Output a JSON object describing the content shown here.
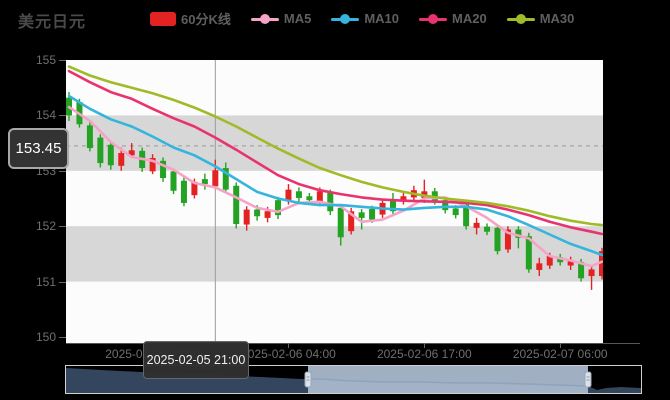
{
  "title": "美元日元",
  "legend": {
    "kline": {
      "label": "60分K线",
      "color": "#e32222"
    },
    "mas": [
      {
        "label": "MA5",
        "color": "#f5a3c7"
      },
      {
        "label": "MA10",
        "color": "#35b5dc"
      },
      {
        "label": "MA20",
        "color": "#e8336e"
      },
      {
        "label": "MA30",
        "color": "#9fbb27"
      }
    ]
  },
  "price_label": {
    "text": "153.45"
  },
  "tooltip": {
    "text": "2025-02-05 21:00"
  },
  "axis": {
    "y_ticks": [
      {
        "label": "155",
        "value": 155
      },
      {
        "label": "154",
        "value": 154
      },
      {
        "label": "153",
        "value": 153
      },
      {
        "label": "152",
        "value": 152
      },
      {
        "label": "151",
        "value": 151
      },
      {
        "label": "150",
        "value": 150
      }
    ],
    "x_labels": [
      {
        "text": "2025-02-05 15:00",
        "index": 8
      },
      {
        "text": "2025-02-06 04:00",
        "index": 21
      },
      {
        "text": "2025-02-06 17:00",
        "index": 34
      },
      {
        "text": "2025-02-07 06:00",
        "index": 47
      }
    ]
  },
  "chart_data": {
    "type": "candlestick",
    "title": "美元日元 60分K线",
    "ylim": [
      150,
      155
    ],
    "grid": "striped",
    "plot_bg": "#fcfcfc",
    "band_color": "#d7d7d7",
    "bands": [
      [
        154,
        153
      ],
      [
        152,
        151
      ]
    ],
    "up_color": "#e32222",
    "down_color": "#23a223",
    "crosshair": {
      "candle_index": 14,
      "price": 153.45,
      "time": "2025-02-05 21:00",
      "line_color": "#9a9a9a"
    },
    "candles": [
      {
        "o": 154.32,
        "h": 154.42,
        "l": 153.9,
        "c": 154.0
      },
      {
        "o": 154.24,
        "h": 154.3,
        "l": 153.78,
        "c": 153.84
      },
      {
        "o": 153.82,
        "h": 153.88,
        "l": 153.35,
        "c": 153.41
      },
      {
        "o": 153.6,
        "h": 153.66,
        "l": 153.06,
        "c": 153.14
      },
      {
        "o": 153.47,
        "h": 153.54,
        "l": 153.02,
        "c": 153.1
      },
      {
        "o": 153.09,
        "h": 153.42,
        "l": 153.0,
        "c": 153.32
      },
      {
        "o": 153.28,
        "h": 153.5,
        "l": 153.24,
        "c": 153.37
      },
      {
        "o": 153.36,
        "h": 153.42,
        "l": 152.98,
        "c": 153.05
      },
      {
        "o": 152.99,
        "h": 153.3,
        "l": 152.94,
        "c": 153.23
      },
      {
        "o": 153.18,
        "h": 153.24,
        "l": 152.8,
        "c": 152.87
      },
      {
        "o": 152.99,
        "h": 153.04,
        "l": 152.58,
        "c": 152.64
      },
      {
        "o": 152.82,
        "h": 152.88,
        "l": 152.36,
        "c": 152.42
      },
      {
        "o": 152.56,
        "h": 152.86,
        "l": 152.5,
        "c": 152.8
      },
      {
        "o": 152.85,
        "h": 152.95,
        "l": 152.66,
        "c": 152.76
      },
      {
        "o": 152.72,
        "h": 153.2,
        "l": 152.67,
        "c": 153.01
      },
      {
        "o": 153.05,
        "h": 153.15,
        "l": 152.6,
        "c": 152.66
      },
      {
        "o": 152.73,
        "h": 152.79,
        "l": 151.96,
        "c": 152.04
      },
      {
        "o": 152.03,
        "h": 152.36,
        "l": 151.92,
        "c": 152.3
      },
      {
        "o": 152.3,
        "h": 152.38,
        "l": 152.1,
        "c": 152.18
      },
      {
        "o": 152.15,
        "h": 152.35,
        "l": 152.07,
        "c": 152.27
      },
      {
        "o": 152.47,
        "h": 152.53,
        "l": 152.13,
        "c": 152.2
      },
      {
        "o": 152.45,
        "h": 152.76,
        "l": 152.39,
        "c": 152.66
      },
      {
        "o": 152.63,
        "h": 152.7,
        "l": 152.44,
        "c": 152.51
      },
      {
        "o": 152.54,
        "h": 152.6,
        "l": 152.4,
        "c": 152.47
      },
      {
        "o": 152.42,
        "h": 152.7,
        "l": 152.36,
        "c": 152.63
      },
      {
        "o": 152.6,
        "h": 152.66,
        "l": 152.2,
        "c": 152.27
      },
      {
        "o": 152.33,
        "h": 152.39,
        "l": 151.65,
        "c": 151.8
      },
      {
        "o": 151.91,
        "h": 152.33,
        "l": 151.85,
        "c": 152.27
      },
      {
        "o": 152.25,
        "h": 152.31,
        "l": 151.94,
        "c": 152.15
      },
      {
        "o": 152.31,
        "h": 152.37,
        "l": 152.06,
        "c": 152.12
      },
      {
        "o": 152.21,
        "h": 152.48,
        "l": 152.15,
        "c": 152.42
      },
      {
        "o": 152.48,
        "h": 152.6,
        "l": 152.21,
        "c": 152.27
      },
      {
        "o": 152.48,
        "h": 152.63,
        "l": 152.39,
        "c": 152.54
      },
      {
        "o": 152.52,
        "h": 152.73,
        "l": 152.46,
        "c": 152.65
      },
      {
        "o": 152.51,
        "h": 152.84,
        "l": 152.42,
        "c": 152.63
      },
      {
        "o": 152.63,
        "h": 152.69,
        "l": 152.39,
        "c": 152.45
      },
      {
        "o": 152.47,
        "h": 152.53,
        "l": 152.23,
        "c": 152.29
      },
      {
        "o": 152.32,
        "h": 152.38,
        "l": 152.14,
        "c": 152.2
      },
      {
        "o": 152.39,
        "h": 152.45,
        "l": 151.94,
        "c": 152.0
      },
      {
        "o": 151.97,
        "h": 152.15,
        "l": 151.85,
        "c": 152.06
      },
      {
        "o": 151.99,
        "h": 152.05,
        "l": 151.84,
        "c": 151.9
      },
      {
        "o": 151.97,
        "h": 152.03,
        "l": 151.49,
        "c": 151.55
      },
      {
        "o": 151.58,
        "h": 152.0,
        "l": 151.52,
        "c": 151.94
      },
      {
        "o": 151.94,
        "h": 152.0,
        "l": 151.6,
        "c": 151.79
      },
      {
        "o": 151.82,
        "h": 151.88,
        "l": 151.16,
        "c": 151.22
      },
      {
        "o": 151.21,
        "h": 151.43,
        "l": 151.1,
        "c": 151.33
      },
      {
        "o": 151.29,
        "h": 151.52,
        "l": 151.23,
        "c": 151.46
      },
      {
        "o": 151.44,
        "h": 151.5,
        "l": 151.29,
        "c": 151.35
      },
      {
        "o": 151.29,
        "h": 151.45,
        "l": 151.21,
        "c": 151.37
      },
      {
        "o": 151.35,
        "h": 151.41,
        "l": 151.0,
        "c": 151.06
      },
      {
        "o": 151.1,
        "h": 151.28,
        "l": 150.85,
        "c": 151.22
      },
      {
        "o": 151.1,
        "h": 151.61,
        "l": 151.04,
        "c": 151.55
      }
    ],
    "ma_series": [
      {
        "name": "MA5",
        "color": "#f5a3c7",
        "points": [
          [
            0,
            154.15
          ],
          [
            2,
            153.9
          ],
          [
            4,
            153.52
          ],
          [
            6,
            153.25
          ],
          [
            8,
            153.18
          ],
          [
            10,
            153.02
          ],
          [
            12,
            152.78
          ],
          [
            14,
            152.7
          ],
          [
            16,
            152.52
          ],
          [
            18,
            152.33
          ],
          [
            20,
            152.26
          ],
          [
            22,
            152.42
          ],
          [
            24,
            152.44
          ],
          [
            26,
            152.36
          ],
          [
            28,
            152.08
          ],
          [
            30,
            152.12
          ],
          [
            32,
            152.28
          ],
          [
            34,
            152.5
          ],
          [
            36,
            152.52
          ],
          [
            38,
            152.36
          ],
          [
            40,
            152.15
          ],
          [
            42,
            151.88
          ],
          [
            44,
            151.78
          ],
          [
            46,
            151.46
          ],
          [
            48,
            151.38
          ],
          [
            50,
            151.28
          ],
          [
            51,
            151.36
          ]
        ]
      },
      {
        "name": "MA10",
        "color": "#35b5dc",
        "points": [
          [
            0,
            154.35
          ],
          [
            2,
            154.12
          ],
          [
            4,
            153.93
          ],
          [
            6,
            153.8
          ],
          [
            8,
            153.62
          ],
          [
            10,
            153.42
          ],
          [
            12,
            153.28
          ],
          [
            14,
            153.08
          ],
          [
            16,
            152.85
          ],
          [
            18,
            152.62
          ],
          [
            20,
            152.5
          ],
          [
            22,
            152.42
          ],
          [
            24,
            152.38
          ],
          [
            26,
            152.38
          ],
          [
            28,
            152.35
          ],
          [
            30,
            152.32
          ],
          [
            32,
            152.3
          ],
          [
            34,
            152.33
          ],
          [
            36,
            152.35
          ],
          [
            38,
            152.35
          ],
          [
            40,
            152.3
          ],
          [
            42,
            152.18
          ],
          [
            44,
            152.02
          ],
          [
            46,
            151.85
          ],
          [
            48,
            151.68
          ],
          [
            50,
            151.55
          ],
          [
            51,
            151.48
          ]
        ]
      },
      {
        "name": "MA20",
        "color": "#e8336e",
        "points": [
          [
            0,
            154.8
          ],
          [
            2,
            154.6
          ],
          [
            4,
            154.42
          ],
          [
            6,
            154.3
          ],
          [
            8,
            154.12
          ],
          [
            10,
            153.95
          ],
          [
            12,
            153.8
          ],
          [
            14,
            153.6
          ],
          [
            16,
            153.38
          ],
          [
            18,
            153.15
          ],
          [
            20,
            152.92
          ],
          [
            22,
            152.76
          ],
          [
            24,
            152.65
          ],
          [
            26,
            152.58
          ],
          [
            28,
            152.52
          ],
          [
            30,
            152.48
          ],
          [
            32,
            152.46
          ],
          [
            34,
            152.45
          ],
          [
            36,
            152.44
          ],
          [
            38,
            152.42
          ],
          [
            40,
            152.38
          ],
          [
            42,
            152.3
          ],
          [
            44,
            152.2
          ],
          [
            46,
            152.08
          ],
          [
            48,
            151.98
          ],
          [
            50,
            151.9
          ],
          [
            51,
            151.86
          ]
        ]
      },
      {
        "name": "MA30",
        "color": "#9fbb27",
        "points": [
          [
            0,
            154.88
          ],
          [
            2,
            154.72
          ],
          [
            4,
            154.6
          ],
          [
            6,
            154.5
          ],
          [
            8,
            154.4
          ],
          [
            10,
            154.28
          ],
          [
            12,
            154.14
          ],
          [
            14,
            153.98
          ],
          [
            16,
            153.8
          ],
          [
            18,
            153.6
          ],
          [
            20,
            153.4
          ],
          [
            22,
            153.22
          ],
          [
            24,
            153.05
          ],
          [
            26,
            152.92
          ],
          [
            28,
            152.8
          ],
          [
            30,
            152.7
          ],
          [
            32,
            152.62
          ],
          [
            34,
            152.55
          ],
          [
            36,
            152.5
          ],
          [
            38,
            152.46
          ],
          [
            40,
            152.42
          ],
          [
            42,
            152.36
          ],
          [
            44,
            152.28
          ],
          [
            46,
            152.18
          ],
          [
            48,
            152.1
          ],
          [
            50,
            152.04
          ],
          [
            51,
            152.02
          ]
        ]
      }
    ]
  },
  "navigator": {
    "shadow_color": "#34455e",
    "window_color": "#a9b8cc",
    "edge_color": "#8fa3bc",
    "handle_color": "#dde2ea",
    "window": [
      242,
      522
    ],
    "shadow_top": [
      [
        0,
        2
      ],
      [
        35,
        4
      ],
      [
        75,
        6
      ],
      [
        110,
        7
      ],
      [
        140,
        8
      ],
      [
        170,
        10
      ],
      [
        195,
        11
      ],
      [
        215,
        12
      ],
      [
        235,
        13
      ],
      [
        255,
        13
      ],
      [
        285,
        15
      ],
      [
        320,
        16
      ],
      [
        355,
        16
      ],
      [
        390,
        17
      ],
      [
        425,
        17
      ],
      [
        460,
        18
      ],
      [
        490,
        19
      ],
      [
        522,
        20
      ],
      [
        531,
        24
      ],
      [
        540,
        22
      ],
      [
        555,
        21
      ],
      [
        575,
        22
      ]
    ]
  }
}
